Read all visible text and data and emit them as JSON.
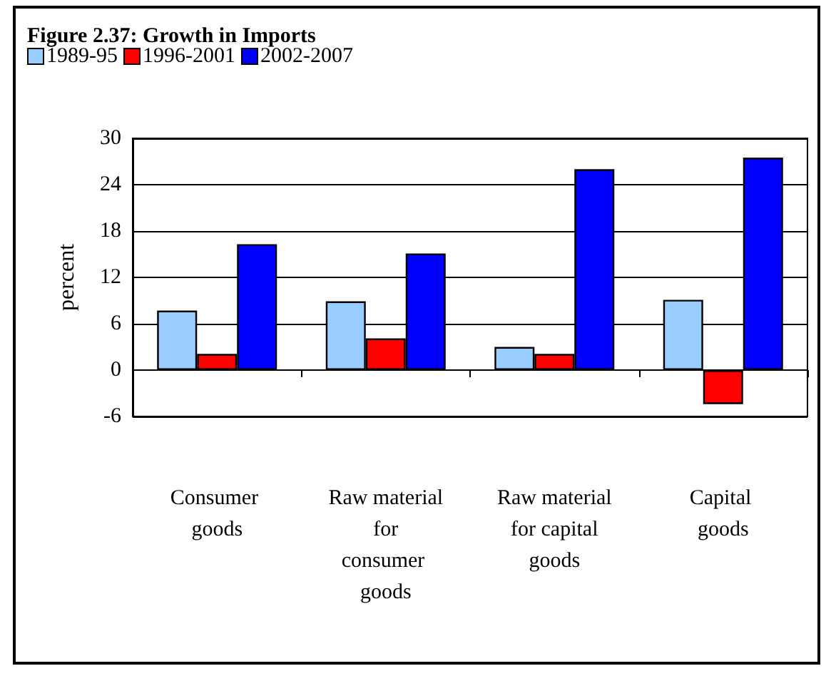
{
  "chart_data": {
    "type": "bar",
    "title": "Figure 2.37: Growth in Imports",
    "ylabel": "percent",
    "categories": [
      "Consumer goods",
      "Raw material for consumer goods",
      "Raw material for capital goods",
      "Capital goods"
    ],
    "series": [
      {
        "name": "1989-95",
        "color": "#99ccff",
        "values": [
          7.7,
          8.9,
          3.0,
          9.1
        ]
      },
      {
        "name": "1996-2001",
        "color": "#ff0000",
        "values": [
          2.1,
          4.1,
          2.1,
          -4.4
        ]
      },
      {
        "name": "2002-2007",
        "color": "#0000ff",
        "values": [
          16.3,
          15.1,
          26.0,
          27.5
        ]
      }
    ],
    "ylim": [
      -6,
      30
    ],
    "yticks": [
      -6,
      0,
      6,
      12,
      18,
      24,
      30
    ],
    "grid": "y",
    "legend": "top left"
  }
}
